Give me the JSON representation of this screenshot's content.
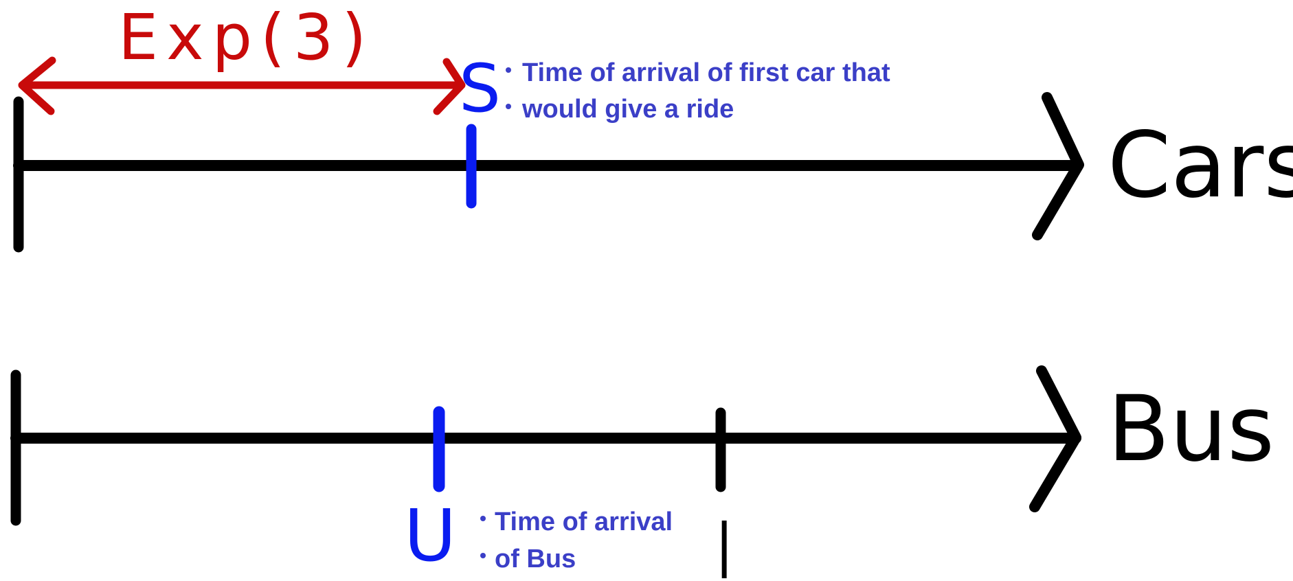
{
  "cars_timeline": {
    "label": "Cars",
    "s_marker_label": "S",
    "s_note_line1": "Time of arrival of first car that",
    "s_note_line2": "would give a ride",
    "exp_label": "Exp(3)"
  },
  "bus_timeline": {
    "label": "Bus",
    "u_marker_label": "U",
    "u_note_line1": "Time of arrival",
    "u_note_line2": "of Bus",
    "bottom_tick_label": "|"
  },
  "colors": {
    "axis": "#000000",
    "marker": "#0a1cf0",
    "note": "#3b3fc7",
    "exp": "#c80a0a"
  }
}
